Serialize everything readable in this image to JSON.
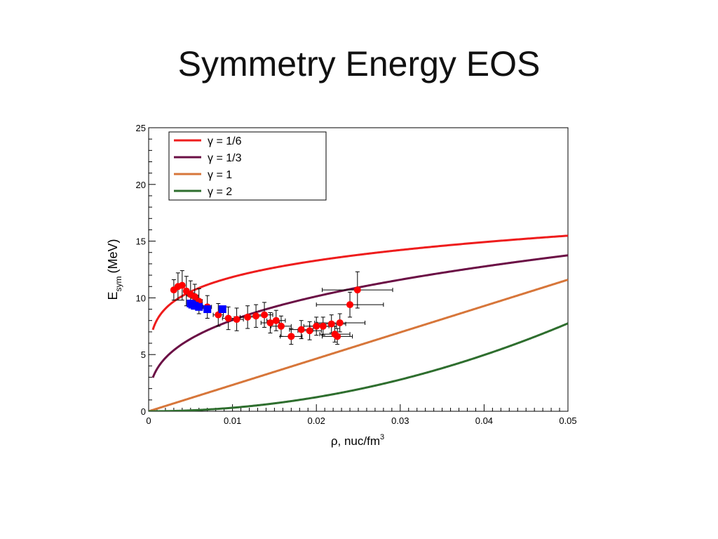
{
  "slide": {
    "title": "Symmetry Energy EOS"
  },
  "colors": {
    "gamma_1_6": "#ee1c1c",
    "gamma_1_3": "#6b0f45",
    "gamma_1": "#d7763a",
    "gamma_2": "#2e6e2e",
    "data_red": "#ff0000",
    "data_blue": "#0000ff"
  },
  "chart_data": {
    "type": "scatter",
    "xlabel": "ρ, nuc/fm³",
    "ylabel": "E_sym (MeV)",
    "ylabel_main": "E",
    "ylabel_sub": "sym",
    "ylabel_unit": "(MeV)",
    "xlabel_text": "ρ, nuc/fm",
    "xlabel_sup": "3",
    "xlim": [
      0,
      0.05
    ],
    "ylim": [
      0,
      25
    ],
    "xticks": [
      0,
      0.01,
      0.02,
      0.03,
      0.04,
      0.05
    ],
    "xtick_labels": [
      "0",
      "0.01",
      "0.02",
      "0.03",
      "0.04",
      "0.05"
    ],
    "yticks": [
      0,
      5,
      10,
      15,
      20,
      25
    ],
    "ytick_labels": [
      "0",
      "5",
      "10",
      "15",
      "20",
      "25"
    ],
    "grid": false,
    "legend_position": "top-left",
    "curves": [
      {
        "name": "γ = 1/6",
        "gamma": 0.1667,
        "color": "#ee1c1c",
        "points": [
          [
            0.0005,
            7.18
          ],
          [
            0.001,
            8.06
          ],
          [
            0.002,
            9.05
          ],
          [
            0.005,
            10.55
          ],
          [
            0.01,
            11.84
          ],
          [
            0.02,
            13.29
          ],
          [
            0.03,
            14.22
          ],
          [
            0.04,
            14.92
          ],
          [
            0.05,
            15.48
          ]
        ]
      },
      {
        "name": "γ = 1/3",
        "gamma": 0.3333,
        "color": "#6b0f45",
        "points": [
          [
            0.0005,
            2.96
          ],
          [
            0.001,
            3.73
          ],
          [
            0.002,
            4.7
          ],
          [
            0.005,
            6.38
          ],
          [
            0.01,
            8.04
          ],
          [
            0.02,
            10.13
          ],
          [
            0.03,
            11.6
          ],
          [
            0.04,
            12.76
          ],
          [
            0.05,
            13.75
          ]
        ]
      },
      {
        "name": "γ = 1",
        "gamma": 1,
        "color": "#d7763a",
        "points": [
          [
            0,
            0
          ],
          [
            0.01,
            2.32
          ],
          [
            0.02,
            4.64
          ],
          [
            0.03,
            6.96
          ],
          [
            0.04,
            9.28
          ],
          [
            0.05,
            11.6
          ]
        ]
      },
      {
        "name": "γ = 2",
        "gamma": 2,
        "color": "#2e6e2e",
        "points": [
          [
            0,
            0
          ],
          [
            0.01,
            1.55
          ],
          [
            0.02,
            3.1
          ],
          [
            0.03,
            4.65
          ],
          [
            0.04,
            6.2
          ],
          [
            0.05,
            7.75
          ]
        ]
      }
    ],
    "series_red": [
      {
        "x": 0.003,
        "y": 10.7,
        "xerr": 0.0003,
        "yerr": 0.9
      },
      {
        "x": 0.0035,
        "y": 11.0,
        "xerr": 0.0003,
        "yerr": 1.2
      },
      {
        "x": 0.004,
        "y": 11.1,
        "xerr": 0.0003,
        "yerr": 1.3
      },
      {
        "x": 0.0045,
        "y": 10.6,
        "xerr": 0.0003,
        "yerr": 1.3
      },
      {
        "x": 0.005,
        "y": 10.3,
        "xerr": 0.0004,
        "yerr": 1.2
      },
      {
        "x": 0.0055,
        "y": 10.1,
        "xerr": 0.0004,
        "yerr": 1.1
      },
      {
        "x": 0.006,
        "y": 9.7,
        "xerr": 0.0004,
        "yerr": 1.1
      },
      {
        "x": 0.007,
        "y": 9.2,
        "xerr": 0.0005,
        "yerr": 1.0
      },
      {
        "x": 0.0083,
        "y": 8.5,
        "xerr": 0.0006,
        "yerr": 1.0
      },
      {
        "x": 0.0095,
        "y": 8.2,
        "xerr": 0.0007,
        "yerr": 1.0
      },
      {
        "x": 0.0105,
        "y": 8.1,
        "xerr": 0.0008,
        "yerr": 1.0
      },
      {
        "x": 0.0118,
        "y": 8.3,
        "xerr": 0.0009,
        "yerr": 1.0
      },
      {
        "x": 0.0128,
        "y": 8.4,
        "xerr": 0.001,
        "yerr": 1.0
      },
      {
        "x": 0.0138,
        "y": 8.5,
        "xerr": 0.001,
        "yerr": 1.1
      },
      {
        "x": 0.0145,
        "y": 7.8,
        "xerr": 0.0011,
        "yerr": 0.9
      },
      {
        "x": 0.0152,
        "y": 8.0,
        "xerr": 0.0011,
        "yerr": 0.9
      },
      {
        "x": 0.0158,
        "y": 7.5,
        "xerr": 0.0012,
        "yerr": 0.9
      },
      {
        "x": 0.017,
        "y": 6.6,
        "xerr": 0.0013,
        "yerr": 0.7
      },
      {
        "x": 0.0182,
        "y": 7.2,
        "xerr": 0.0014,
        "yerr": 0.8
      },
      {
        "x": 0.0192,
        "y": 7.1,
        "xerr": 0.0014,
        "yerr": 0.8
      },
      {
        "x": 0.02,
        "y": 7.5,
        "xerr": 0.0015,
        "yerr": 0.8
      },
      {
        "x": 0.0208,
        "y": 7.5,
        "xerr": 0.0016,
        "yerr": 0.8
      },
      {
        "x": 0.0218,
        "y": 7.7,
        "xerr": 0.0017,
        "yerr": 0.8
      },
      {
        "x": 0.0222,
        "y": 6.8,
        "xerr": 0.0018,
        "yerr": 0.7
      },
      {
        "x": 0.0225,
        "y": 6.6,
        "xerr": 0.0018,
        "yerr": 0.7
      },
      {
        "x": 0.0228,
        "y": 7.8,
        "xerr": 0.003,
        "yerr": 0.8
      },
      {
        "x": 0.024,
        "y": 9.4,
        "xerr": 0.004,
        "yerr": 1.1
      },
      {
        "x": 0.0249,
        "y": 10.7,
        "xerr": 0.0042,
        "yerr": 1.6
      }
    ],
    "series_blue": [
      {
        "x": 0.005,
        "y": 9.5
      },
      {
        "x": 0.0052,
        "y": 9.4
      },
      {
        "x": 0.0055,
        "y": 9.3
      },
      {
        "x": 0.006,
        "y": 9.2
      },
      {
        "x": 0.007,
        "y": 9.0
      },
      {
        "x": 0.0088,
        "y": 9.0
      }
    ]
  }
}
